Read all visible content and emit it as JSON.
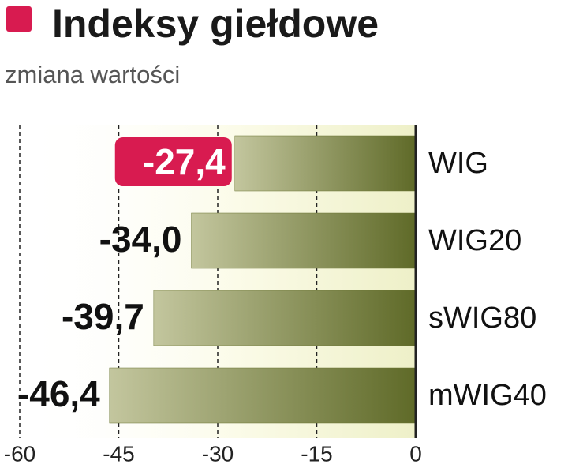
{
  "chart_data": {
    "type": "barh",
    "title": "Indeksy giełdowe",
    "subtitle": "zmiana wartości",
    "categories": [
      "WIG",
      "WIG20",
      "sWIG80",
      "mWIG40"
    ],
    "values": [
      -27.4,
      -34.0,
      -39.7,
      -46.4
    ],
    "value_labels": [
      "-27,4",
      "-34,0",
      "-39,7",
      "-46,4"
    ],
    "color": "#6b7532",
    "highlight_index": 0,
    "highlight_color": "#d81b50",
    "xlim": [
      -60,
      0
    ],
    "xticks": [
      -60,
      -45,
      -30,
      -15,
      0
    ],
    "grid": true
  }
}
